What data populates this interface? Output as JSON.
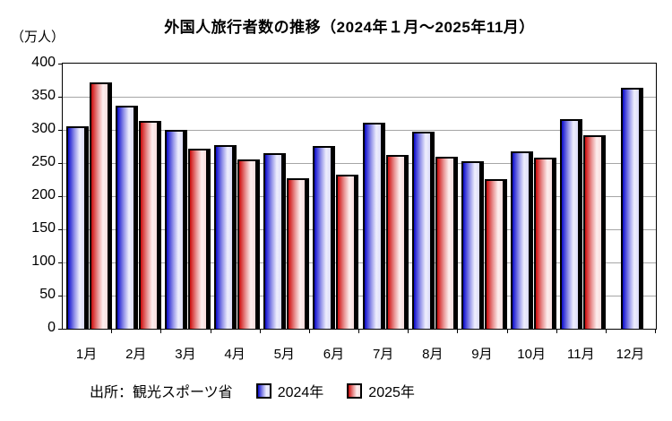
{
  "title": "外国人旅行者数の推移（2024年１月～2025年11月）",
  "unit_label": "（万人）",
  "footer": {
    "source": "出所：観光スポーツ省"
  },
  "y_axis": {
    "ticks": [
      400,
      350,
      300,
      250,
      200,
      150,
      100,
      50,
      0
    ]
  },
  "legend": {
    "items": [
      "2024年",
      "2025年"
    ]
  },
  "chart_data": {
    "type": "bar",
    "title": "外国人旅行者数の推移（2024年１月～2025年11月）",
    "ylabel": "（万人）",
    "xlabel": "",
    "ylim": [
      0,
      400
    ],
    "ytick_step": 50,
    "grid": true,
    "legend_position": "bottom",
    "categories": [
      "1月",
      "2月",
      "3月",
      "4月",
      "5月",
      "6月",
      "7月",
      "8月",
      "9月",
      "10月",
      "11月",
      "12月"
    ],
    "series": [
      {
        "name": "2024年",
        "color_dark": "#0a0ac8",
        "color_light": "#eeeefd",
        "values": [
          305,
          336,
          300,
          277,
          265,
          276,
          311,
          297,
          253,
          268,
          316,
          364
        ]
      },
      {
        "name": "2025年",
        "color_dark": "#c80a0a",
        "color_light": "#fdeeee",
        "values": [
          372,
          313,
          272,
          255,
          227,
          233,
          262,
          260,
          225,
          258,
          292,
          null
        ]
      }
    ]
  }
}
